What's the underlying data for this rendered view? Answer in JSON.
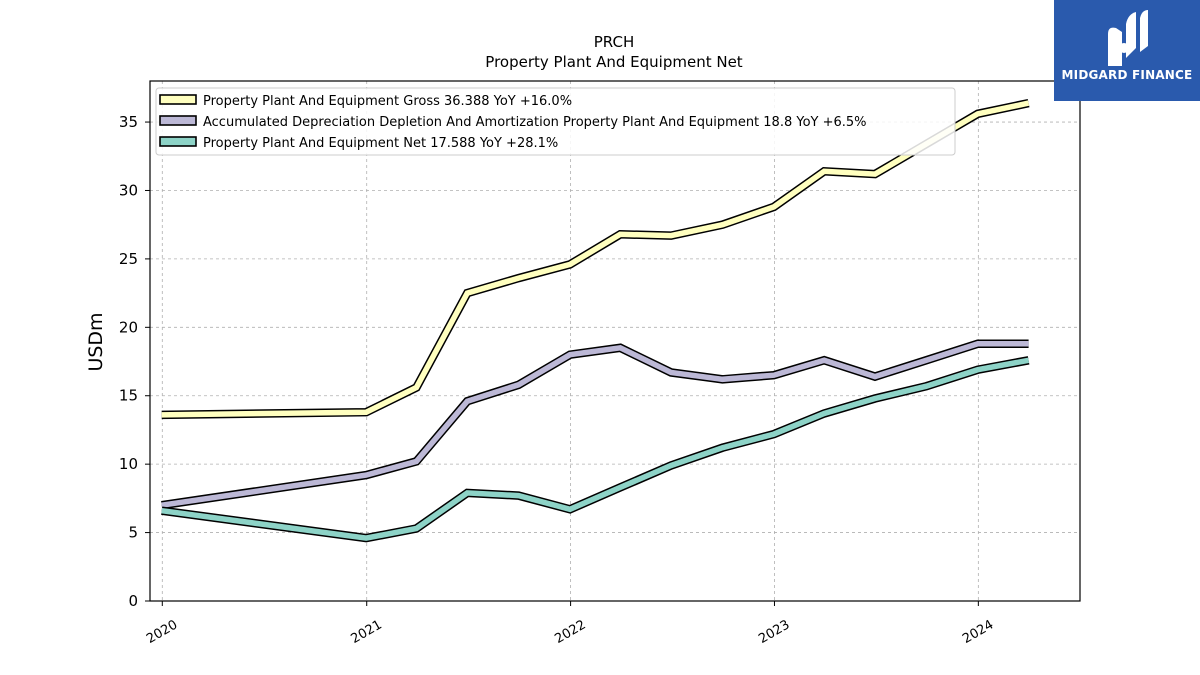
{
  "chart_data": {
    "type": "line",
    "title": "PRCH",
    "subtitle": "Property Plant And Equipment Net",
    "ylabel": "USDm",
    "xlabel": "",
    "ylim": [
      0,
      38
    ],
    "yticks": [
      0,
      5,
      10,
      15,
      20,
      25,
      30,
      35
    ],
    "xticks": [
      "2020",
      "2021",
      "2022",
      "2023",
      "2024"
    ],
    "grid": true,
    "legend_position": "top-left",
    "x": [
      "2019-12-31",
      "2020-12-31",
      "2021-03-31",
      "2021-06-30",
      "2021-09-30",
      "2021-12-31",
      "2022-03-31",
      "2022-06-30",
      "2022-09-30",
      "2022-12-31",
      "2023-03-31",
      "2023-06-30",
      "2023-09-30",
      "2023-12-31",
      "2024-03-31"
    ],
    "series": [
      {
        "name": "Property Plant And Equipment Gross",
        "legend_label": "Property Plant And Equipment Gross  36.388 YoY +16.0%",
        "color": "#ffffbf",
        "values": [
          13.6,
          13.8,
          15.6,
          22.5,
          23.6,
          24.6,
          26.8,
          26.7,
          27.5,
          28.8,
          31.4,
          31.2,
          33.4,
          35.6,
          36.388
        ]
      },
      {
        "name": "Accumulated Depreciation Depletion And Amortization Property Plant And Equipment",
        "legend_label": "Accumulated Depreciation Depletion And Amortization Property Plant And Equipment  18.8 YoY +6.5%",
        "color": "#bcb8d6",
        "values": [
          7.0,
          9.2,
          10.2,
          14.6,
          15.8,
          18.0,
          18.5,
          16.7,
          16.2,
          16.5,
          17.6,
          16.4,
          17.6,
          18.8,
          18.8
        ]
      },
      {
        "name": "Property Plant And Equipment Net",
        "legend_label": "Property Plant And Equipment Net  17.588 YoY +28.1%",
        "color": "#8dd3c7",
        "values": [
          6.6,
          4.6,
          5.3,
          7.9,
          7.7,
          6.7,
          8.3,
          9.9,
          11.2,
          12.2,
          13.7,
          14.8,
          15.7,
          16.9,
          17.588
        ]
      }
    ]
  },
  "logo": {
    "text": "MIDGARD FINANCE"
  }
}
